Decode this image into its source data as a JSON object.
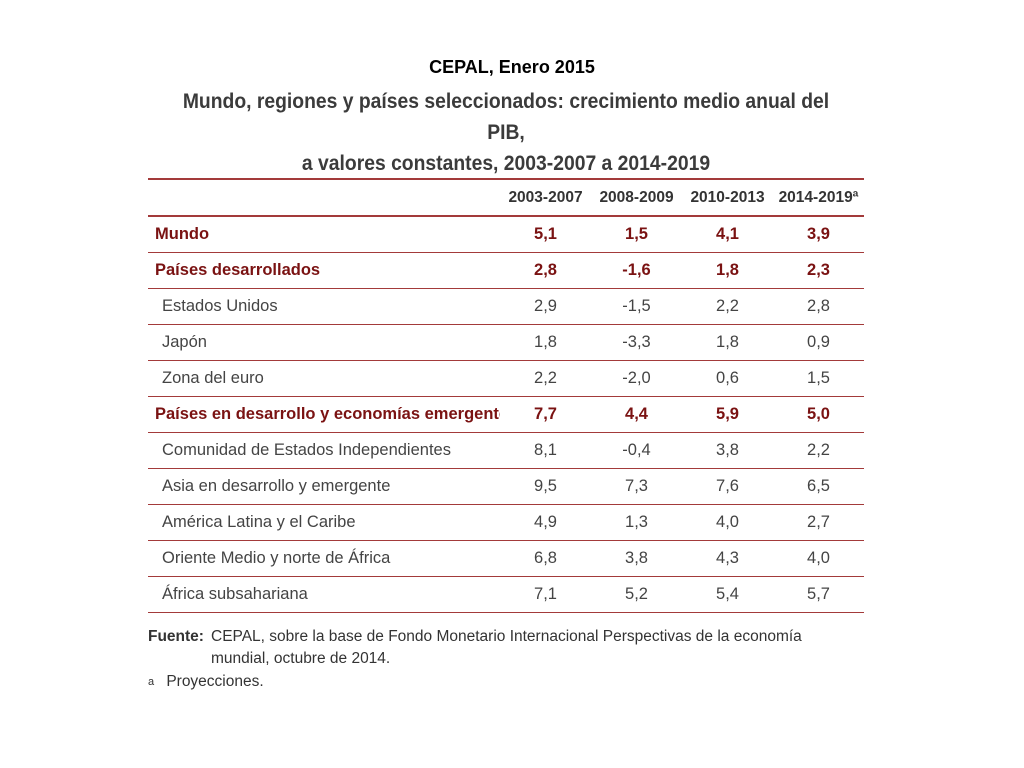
{
  "slide": {
    "header": "CEPAL, Enero 2015"
  },
  "colors": {
    "rule": "#a33a3a",
    "highlight_text": "#7a1212",
    "body_text": "#444444"
  },
  "chart_data": {
    "type": "table",
    "title_line1": "Mundo, regiones y países seleccionados: crecimiento medio anual del PIB,",
    "title_line2": "a valores constantes, 2003-2007 a 2014-2019",
    "columns": [
      "2003-2007",
      "2008-2009",
      "2010-2013",
      "2014-2019ª"
    ],
    "rows": [
      {
        "label": "Mundo",
        "bold": true,
        "values": [
          "5,1",
          "1,5",
          "4,1",
          "3,9"
        ]
      },
      {
        "label": "Países desarrollados",
        "bold": true,
        "values": [
          "2,8",
          "-1,6",
          "1,8",
          "2,3"
        ]
      },
      {
        "label": "Estados Unidos",
        "bold": false,
        "values": [
          "2,9",
          "-1,5",
          "2,2",
          "2,8"
        ]
      },
      {
        "label": "Japón",
        "bold": false,
        "values": [
          "1,8",
          "-3,3",
          "1,8",
          "0,9"
        ]
      },
      {
        "label": "Zona del euro",
        "bold": false,
        "values": [
          "2,2",
          "-2,0",
          "0,6",
          "1,5"
        ]
      },
      {
        "label": "Países en desarrollo y economías emergentes",
        "bold": true,
        "values": [
          "7,7",
          "4,4",
          "5,9",
          "5,0"
        ]
      },
      {
        "label": "Comunidad de Estados Independientes",
        "bold": false,
        "values": [
          "8,1",
          "-0,4",
          "3,8",
          "2,2"
        ]
      },
      {
        "label": "Asia en desarrollo y emergente",
        "bold": false,
        "values": [
          "9,5",
          "7,3",
          "7,6",
          "6,5"
        ]
      },
      {
        "label": "América Latina y el Caribe",
        "bold": false,
        "values": [
          "4,9",
          "1,3",
          "4,0",
          "2,7"
        ]
      },
      {
        "label": "Oriente Medio y norte de África",
        "bold": false,
        "values": [
          "6,8",
          "3,8",
          "4,3",
          "4,0"
        ]
      },
      {
        "label": "África subsahariana",
        "bold": false,
        "values": [
          "7,1",
          "5,2",
          "5,4",
          "5,7"
        ]
      }
    ],
    "source_label": "Fuente:",
    "source_text": "CEPAL, sobre la base de Fondo Monetario Internacional Perspectivas de la economía mundial, octubre de 2014.",
    "footnote_mark": "a",
    "footnote_text": "Proyecciones."
  }
}
